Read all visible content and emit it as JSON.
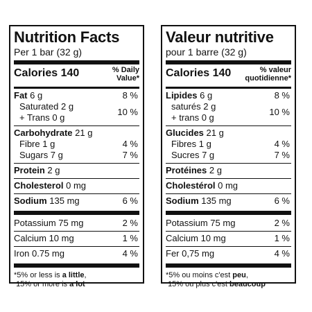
{
  "en": {
    "title": "Nutrition Facts",
    "serving": "Per 1 bar (32 g)",
    "calories_label": "Calories 140",
    "dv_header_1": "% Daily",
    "dv_header_2": "Value*",
    "fat": {
      "label": "Fat",
      "amount": "6 g",
      "dv": "8 %"
    },
    "saturated": "Saturated 2 g",
    "trans": "+ Trans 0 g",
    "sat_trans_dv": "10 %",
    "carb": {
      "label": "Carbohydrate",
      "amount": "21 g"
    },
    "fibre": {
      "label": "Fibre 1 g",
      "dv": "4 %"
    },
    "sugars": {
      "label": "Sugars 7 g",
      "dv": "7 %"
    },
    "protein": {
      "label": "Protein",
      "amount": "2 g"
    },
    "cholesterol": {
      "label": "Cholesterol",
      "amount": "0 mg"
    },
    "sodium": {
      "label": "Sodium",
      "amount": "135 mg",
      "dv": "6 %"
    },
    "potassium": {
      "label": "Potassium 75 mg",
      "dv": "2 %"
    },
    "calcium": {
      "label": "Calcium 10 mg",
      "dv": "1 %"
    },
    "iron": {
      "label": "Iron 0.75 mg",
      "dv": "4 %"
    },
    "foot_1a": "*5% or less is ",
    "foot_1b": "a little",
    "foot_1c": ",",
    "foot_2a": "15% or more is ",
    "foot_2b": "a lot"
  },
  "fr": {
    "title": "Valeur nutritive",
    "serving": "pour 1 barre (32 g)",
    "calories_label": "Calories 140",
    "dv_header_1": "% valeur",
    "dv_header_2": "quotidienne*",
    "fat": {
      "label": "Lipides",
      "amount": "6 g",
      "dv": "8 %"
    },
    "saturated": "saturés 2 g",
    "trans": "+ trans 0 g",
    "sat_trans_dv": "10 %",
    "carb": {
      "label": "Glucides",
      "amount": "21 g"
    },
    "fibre": {
      "label": "Fibres 1 g",
      "dv": "4 %"
    },
    "sugars": {
      "label": "Sucres 7 g",
      "dv": "7 %"
    },
    "protein": {
      "label": "Protéines",
      "amount": "2 g"
    },
    "cholesterol": {
      "label": "Cholestérol",
      "amount": "0 mg"
    },
    "sodium": {
      "label": "Sodium",
      "amount": "135 mg",
      "dv": "6 %"
    },
    "potassium": {
      "label": "Potassium 75 mg",
      "dv": "2 %"
    },
    "calcium": {
      "label": "Calcium 10 mg",
      "dv": "1 %"
    },
    "iron": {
      "label": "Fer 0,75 mg",
      "dv": "4 %"
    },
    "foot_1a": "*5% ou moins c'est ",
    "foot_1b": "peu",
    "foot_1c": ",",
    "foot_2a": "15% ou plus c'est ",
    "foot_2b": "beaucoup"
  }
}
